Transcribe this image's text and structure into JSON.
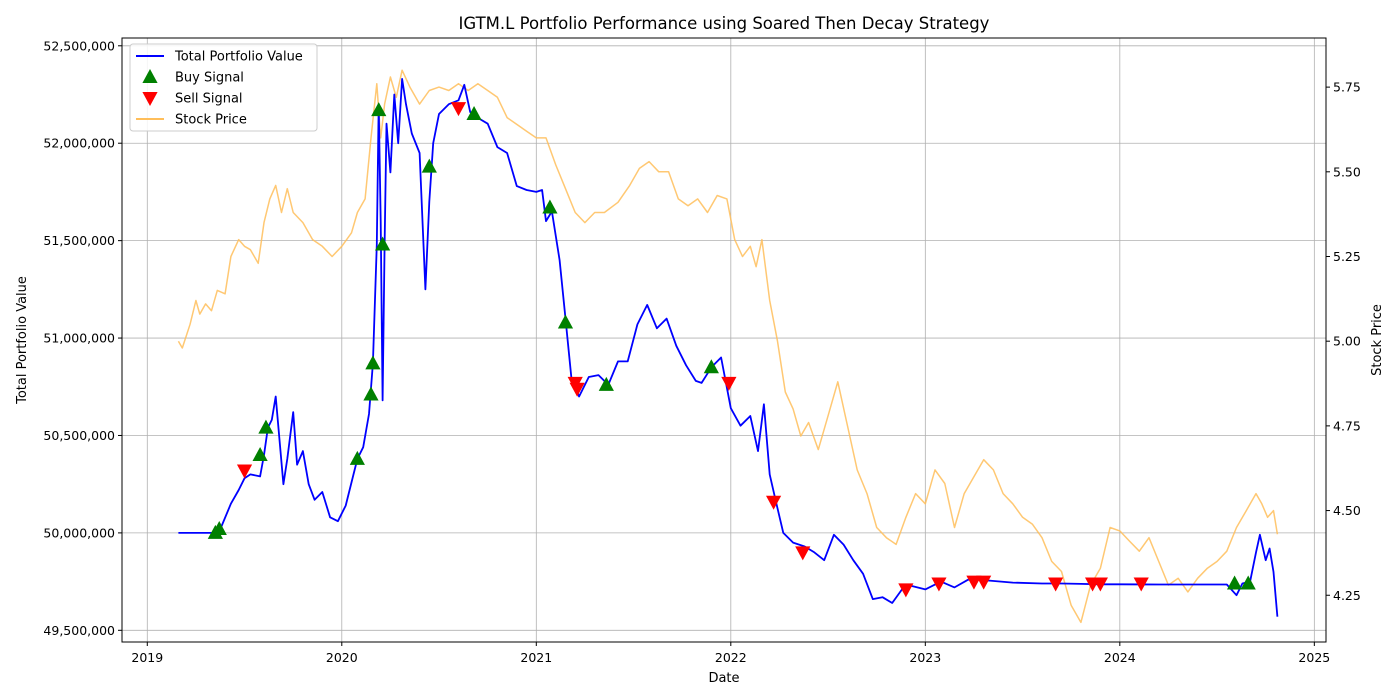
{
  "chart_data": {
    "type": "line",
    "title": "IGTM.L Portfolio Performance using Soared Then Decay Strategy",
    "xlabel": "Date",
    "ylabel": "Total Portfolio Value",
    "y2label": "Stock Price",
    "xlim": [
      2018.87,
      2025.06
    ],
    "ylim": [
      49440000,
      52540000
    ],
    "y2lim": [
      4.112,
      5.895
    ],
    "x_ticks": [
      2019,
      2020,
      2021,
      2022,
      2023,
      2024,
      2025
    ],
    "x_tick_labels": [
      "2019",
      "2020",
      "2021",
      "2022",
      "2023",
      "2024",
      "2025"
    ],
    "y_ticks": [
      49500000,
      50000000,
      50500000,
      51000000,
      51500000,
      52000000,
      52500000
    ],
    "y_tick_labels": [
      "49,500,000",
      "50,000,000",
      "50,500,000",
      "51,000,000",
      "51,500,000",
      "52,000,000",
      "52,500,000"
    ],
    "y2_ticks": [
      4.25,
      4.5,
      4.75,
      5.0,
      5.25,
      5.5,
      5.75
    ],
    "y2_tick_labels": [
      "4.25",
      "4.50",
      "4.75",
      "5.00",
      "5.25",
      "5.50",
      "5.75"
    ],
    "grid": true,
    "legend_position": "top-left",
    "legend": [
      {
        "label": "Total Portfolio Value",
        "kind": "line",
        "color": "#0000ff"
      },
      {
        "label": "Buy Signal",
        "kind": "marker-up",
        "color": "#008000"
      },
      {
        "label": "Sell Signal",
        "kind": "marker-down",
        "color": "#ff0000"
      },
      {
        "label": "Stock Price",
        "kind": "line",
        "color": "#ffbe5a"
      }
    ],
    "series": [
      {
        "name": "Total Portfolio Value",
        "axis": "left",
        "color": "#0000ff",
        "points": [
          [
            2019.16,
            50000000
          ],
          [
            2019.35,
            50000000
          ],
          [
            2019.38,
            50030000
          ],
          [
            2019.43,
            50150000
          ],
          [
            2019.47,
            50220000
          ],
          [
            2019.5,
            50280000
          ],
          [
            2019.53,
            50300000
          ],
          [
            2019.58,
            50290000
          ],
          [
            2019.6,
            50400000
          ],
          [
            2019.62,
            50540000
          ],
          [
            2019.64,
            50580000
          ],
          [
            2019.66,
            50700000
          ],
          [
            2019.7,
            50250000
          ],
          [
            2019.72,
            50380000
          ],
          [
            2019.75,
            50620000
          ],
          [
            2019.77,
            50350000
          ],
          [
            2019.8,
            50420000
          ],
          [
            2019.83,
            50250000
          ],
          [
            2019.86,
            50170000
          ],
          [
            2019.9,
            50210000
          ],
          [
            2019.94,
            50080000
          ],
          [
            2019.98,
            50060000
          ],
          [
            2020.02,
            50140000
          ],
          [
            2020.06,
            50300000
          ],
          [
            2020.08,
            50380000
          ],
          [
            2020.11,
            50440000
          ],
          [
            2020.14,
            50610000
          ],
          [
            2020.16,
            50870000
          ],
          [
            2020.18,
            51480000
          ],
          [
            2020.19,
            52200000
          ],
          [
            2020.2,
            51600000
          ],
          [
            2020.21,
            50680000
          ],
          [
            2020.22,
            51480000
          ],
          [
            2020.23,
            52100000
          ],
          [
            2020.25,
            51850000
          ],
          [
            2020.27,
            52250000
          ],
          [
            2020.29,
            52000000
          ],
          [
            2020.31,
            52330000
          ],
          [
            2020.33,
            52200000
          ],
          [
            2020.36,
            52050000
          ],
          [
            2020.4,
            51950000
          ],
          [
            2020.43,
            51250000
          ],
          [
            2020.45,
            51700000
          ],
          [
            2020.47,
            52000000
          ],
          [
            2020.5,
            52150000
          ],
          [
            2020.55,
            52200000
          ],
          [
            2020.6,
            52220000
          ],
          [
            2020.63,
            52300000
          ],
          [
            2020.66,
            52160000
          ],
          [
            2020.7,
            52130000
          ],
          [
            2020.75,
            52100000
          ],
          [
            2020.8,
            51980000
          ],
          [
            2020.85,
            51950000
          ],
          [
            2020.9,
            51780000
          ],
          [
            2020.95,
            51760000
          ],
          [
            2021.0,
            51750000
          ],
          [
            2021.03,
            51760000
          ],
          [
            2021.05,
            51600000
          ],
          [
            2021.08,
            51650000
          ],
          [
            2021.12,
            51400000
          ],
          [
            2021.15,
            51100000
          ],
          [
            2021.18,
            50800000
          ],
          [
            2021.22,
            50700000
          ],
          [
            2021.27,
            50800000
          ],
          [
            2021.32,
            50810000
          ],
          [
            2021.37,
            50760000
          ],
          [
            2021.42,
            50880000
          ],
          [
            2021.47,
            50880000
          ],
          [
            2021.52,
            51070000
          ],
          [
            2021.57,
            51170000
          ],
          [
            2021.62,
            51050000
          ],
          [
            2021.67,
            51100000
          ],
          [
            2021.72,
            50960000
          ],
          [
            2021.77,
            50860000
          ],
          [
            2021.82,
            50780000
          ],
          [
            2021.85,
            50770000
          ],
          [
            2021.9,
            50850000
          ],
          [
            2021.95,
            50900000
          ],
          [
            2022.0,
            50640000
          ],
          [
            2022.05,
            50550000
          ],
          [
            2022.1,
            50600000
          ],
          [
            2022.14,
            50420000
          ],
          [
            2022.17,
            50660000
          ],
          [
            2022.2,
            50300000
          ],
          [
            2022.23,
            50170000
          ],
          [
            2022.27,
            50000000
          ],
          [
            2022.32,
            49950000
          ],
          [
            2022.38,
            49930000
          ],
          [
            2022.43,
            49900000
          ],
          [
            2022.48,
            49860000
          ],
          [
            2022.53,
            49990000
          ],
          [
            2022.58,
            49940000
          ],
          [
            2022.63,
            49860000
          ],
          [
            2022.68,
            49790000
          ],
          [
            2022.73,
            49660000
          ],
          [
            2022.78,
            49670000
          ],
          [
            2022.83,
            49640000
          ],
          [
            2022.88,
            49710000
          ],
          [
            2022.92,
            49730000
          ],
          [
            2023.0,
            49710000
          ],
          [
            2023.08,
            49750000
          ],
          [
            2023.15,
            49720000
          ],
          [
            2023.22,
            49760000
          ],
          [
            2023.27,
            49760000
          ],
          [
            2023.33,
            49755000
          ],
          [
            2023.45,
            49745000
          ],
          [
            2023.6,
            49740000
          ],
          [
            2023.7,
            49740000
          ],
          [
            2023.8,
            49738000
          ],
          [
            2023.9,
            49736000
          ],
          [
            2024.0,
            49736000
          ],
          [
            2024.2,
            49735000
          ],
          [
            2024.4,
            49735000
          ],
          [
            2024.55,
            49735000
          ],
          [
            2024.6,
            49680000
          ],
          [
            2024.63,
            49740000
          ],
          [
            2024.67,
            49750000
          ],
          [
            2024.7,
            49900000
          ],
          [
            2024.72,
            49990000
          ],
          [
            2024.75,
            49860000
          ],
          [
            2024.77,
            49920000
          ],
          [
            2024.79,
            49800000
          ],
          [
            2024.81,
            49570000
          ]
        ]
      },
      {
        "name": "Stock Price",
        "axis": "right",
        "color": "#ffbe5a",
        "points": [
          [
            2019.16,
            5.0
          ],
          [
            2019.18,
            4.98
          ],
          [
            2019.22,
            5.05
          ],
          [
            2019.25,
            5.12
          ],
          [
            2019.27,
            5.08
          ],
          [
            2019.3,
            5.11
          ],
          [
            2019.33,
            5.09
          ],
          [
            2019.36,
            5.15
          ],
          [
            2019.4,
            5.14
          ],
          [
            2019.43,
            5.25
          ],
          [
            2019.47,
            5.3
          ],
          [
            2019.5,
            5.28
          ],
          [
            2019.53,
            5.27
          ],
          [
            2019.57,
            5.23
          ],
          [
            2019.6,
            5.35
          ],
          [
            2019.63,
            5.42
          ],
          [
            2019.66,
            5.46
          ],
          [
            2019.69,
            5.38
          ],
          [
            2019.72,
            5.45
          ],
          [
            2019.75,
            5.38
          ],
          [
            2019.8,
            5.35
          ],
          [
            2019.85,
            5.3
          ],
          [
            2019.9,
            5.28
          ],
          [
            2019.95,
            5.25
          ],
          [
            2020.0,
            5.28
          ],
          [
            2020.05,
            5.32
          ],
          [
            2020.08,
            5.38
          ],
          [
            2020.12,
            5.42
          ],
          [
            2020.15,
            5.6
          ],
          [
            2020.18,
            5.76
          ],
          [
            2020.2,
            5.6
          ],
          [
            2020.22,
            5.7
          ],
          [
            2020.25,
            5.78
          ],
          [
            2020.28,
            5.72
          ],
          [
            2020.31,
            5.8
          ],
          [
            2020.35,
            5.75
          ],
          [
            2020.4,
            5.7
          ],
          [
            2020.45,
            5.74
          ],
          [
            2020.5,
            5.75
          ],
          [
            2020.55,
            5.74
          ],
          [
            2020.6,
            5.76
          ],
          [
            2020.65,
            5.74
          ],
          [
            2020.7,
            5.76
          ],
          [
            2020.75,
            5.74
          ],
          [
            2020.8,
            5.72
          ],
          [
            2020.85,
            5.66
          ],
          [
            2020.9,
            5.64
          ],
          [
            2020.95,
            5.62
          ],
          [
            2021.0,
            5.6
          ],
          [
            2021.05,
            5.6
          ],
          [
            2021.1,
            5.52
          ],
          [
            2021.15,
            5.45
          ],
          [
            2021.2,
            5.38
          ],
          [
            2021.25,
            5.35
          ],
          [
            2021.3,
            5.38
          ],
          [
            2021.35,
            5.38
          ],
          [
            2021.42,
            5.41
          ],
          [
            2021.48,
            5.46
          ],
          [
            2021.53,
            5.51
          ],
          [
            2021.58,
            5.53
          ],
          [
            2021.63,
            5.5
          ],
          [
            2021.68,
            5.5
          ],
          [
            2021.73,
            5.42
          ],
          [
            2021.78,
            5.4
          ],
          [
            2021.83,
            5.42
          ],
          [
            2021.88,
            5.38
          ],
          [
            2021.93,
            5.43
          ],
          [
            2021.98,
            5.42
          ],
          [
            2022.02,
            5.3
          ],
          [
            2022.06,
            5.25
          ],
          [
            2022.1,
            5.28
          ],
          [
            2022.13,
            5.22
          ],
          [
            2022.16,
            5.3
          ],
          [
            2022.2,
            5.12
          ],
          [
            2022.24,
            5.0
          ],
          [
            2022.28,
            4.85
          ],
          [
            2022.32,
            4.8
          ],
          [
            2022.36,
            4.72
          ],
          [
            2022.4,
            4.76
          ],
          [
            2022.45,
            4.68
          ],
          [
            2022.5,
            4.78
          ],
          [
            2022.55,
            4.88
          ],
          [
            2022.6,
            4.75
          ],
          [
            2022.65,
            4.62
          ],
          [
            2022.7,
            4.55
          ],
          [
            2022.75,
            4.45
          ],
          [
            2022.8,
            4.42
          ],
          [
            2022.85,
            4.4
          ],
          [
            2022.9,
            4.48
          ],
          [
            2022.95,
            4.55
          ],
          [
            2023.0,
            4.52
          ],
          [
            2023.05,
            4.62
          ],
          [
            2023.1,
            4.58
          ],
          [
            2023.15,
            4.45
          ],
          [
            2023.2,
            4.55
          ],
          [
            2023.25,
            4.6
          ],
          [
            2023.3,
            4.65
          ],
          [
            2023.35,
            4.62
          ],
          [
            2023.4,
            4.55
          ],
          [
            2023.45,
            4.52
          ],
          [
            2023.5,
            4.48
          ],
          [
            2023.55,
            4.46
          ],
          [
            2023.6,
            4.42
          ],
          [
            2023.65,
            4.35
          ],
          [
            2023.7,
            4.32
          ],
          [
            2023.75,
            4.22
          ],
          [
            2023.8,
            4.17
          ],
          [
            2023.85,
            4.28
          ],
          [
            2023.9,
            4.33
          ],
          [
            2023.95,
            4.45
          ],
          [
            2024.0,
            4.44
          ],
          [
            2024.05,
            4.41
          ],
          [
            2024.1,
            4.38
          ],
          [
            2024.15,
            4.42
          ],
          [
            2024.2,
            4.35
          ],
          [
            2024.25,
            4.28
          ],
          [
            2024.3,
            4.3
          ],
          [
            2024.35,
            4.26
          ],
          [
            2024.4,
            4.3
          ],
          [
            2024.45,
            4.33
          ],
          [
            2024.5,
            4.35
          ],
          [
            2024.55,
            4.38
          ],
          [
            2024.6,
            4.45
          ],
          [
            2024.65,
            4.5
          ],
          [
            2024.7,
            4.55
          ],
          [
            2024.73,
            4.52
          ],
          [
            2024.76,
            4.48
          ],
          [
            2024.79,
            4.5
          ],
          [
            2024.81,
            4.43
          ]
        ]
      }
    ],
    "buy_signals": [
      [
        2019.35,
        50000000
      ],
      [
        2019.37,
        50020000
      ],
      [
        2019.58,
        50400000
      ],
      [
        2019.61,
        50540000
      ],
      [
        2020.08,
        50380000
      ],
      [
        2020.15,
        50710000
      ],
      [
        2020.16,
        50870000
      ],
      [
        2020.19,
        52170000
      ],
      [
        2020.21,
        51480000
      ],
      [
        2020.45,
        51880000
      ],
      [
        2020.68,
        52150000
      ],
      [
        2021.07,
        51670000
      ],
      [
        2021.15,
        51080000
      ],
      [
        2021.36,
        50760000
      ],
      [
        2021.9,
        50850000
      ],
      [
        2024.59,
        49740000
      ],
      [
        2024.66,
        49740000
      ]
    ],
    "sell_signals": [
      [
        2019.5,
        50320000
      ],
      [
        2020.6,
        52180000
      ],
      [
        2021.2,
        50770000
      ],
      [
        2021.21,
        50740000
      ],
      [
        2021.99,
        50770000
      ],
      [
        2022.22,
        50160000
      ],
      [
        2022.37,
        49900000
      ],
      [
        2022.9,
        49710000
      ],
      [
        2023.07,
        49740000
      ],
      [
        2023.25,
        49750000
      ],
      [
        2023.3,
        49750000
      ],
      [
        2023.67,
        49740000
      ],
      [
        2023.86,
        49740000
      ],
      [
        2023.9,
        49740000
      ],
      [
        2024.11,
        49740000
      ]
    ]
  }
}
